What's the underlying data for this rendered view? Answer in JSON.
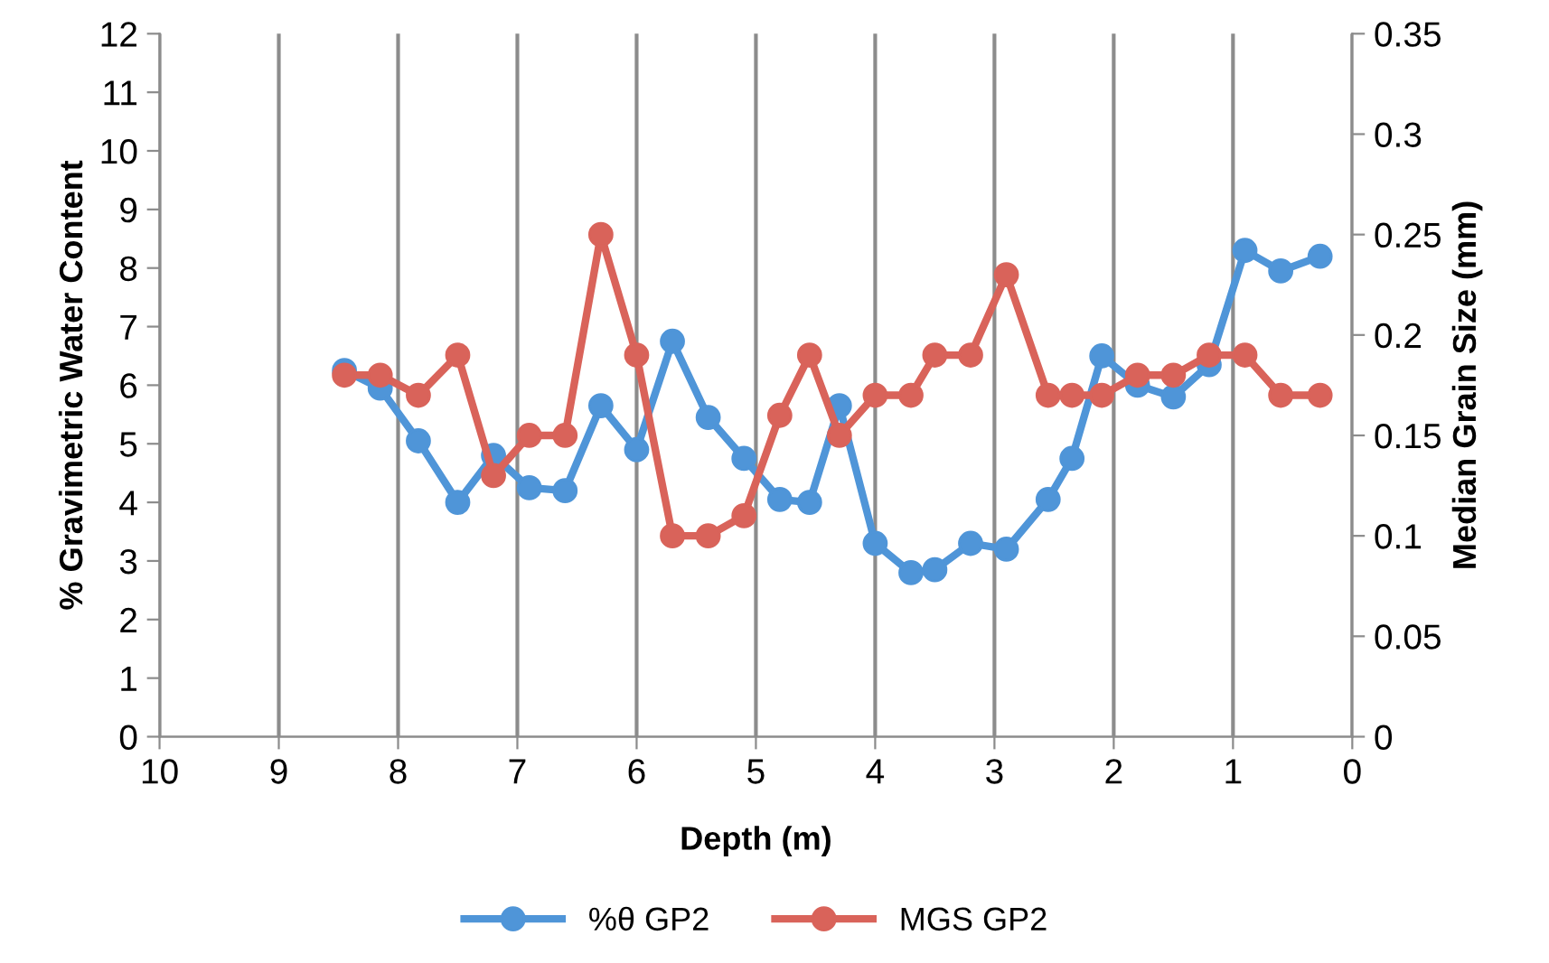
{
  "chart_data": {
    "type": "line",
    "xlabel": "Depth (m)",
    "ylabel": "% Gravimetric Water Content",
    "y2label": "Median Grain Size (mm)",
    "x": [
      8.45,
      8.15,
      7.83,
      7.5,
      7.2,
      6.9,
      6.6,
      6.3,
      6.0,
      5.7,
      5.4,
      5.1,
      4.8,
      4.55,
      4.3,
      4.0,
      3.7,
      3.5,
      3.2,
      2.9,
      2.55,
      2.35,
      2.1,
      1.8,
      1.5,
      1.2,
      0.9,
      0.6,
      0.27
    ],
    "series": [
      {
        "name": "%θ GP2",
        "color": "#4f95d8",
        "values": [
          6.25,
          5.95,
          5.05,
          4.0,
          4.8,
          4.25,
          4.2,
          5.65,
          4.9,
          6.75,
          5.45,
          4.75,
          4.05,
          4.0,
          5.65,
          3.3,
          2.8,
          2.85,
          3.3,
          3.2,
          4.05,
          4.75,
          6.5,
          6.0,
          5.8,
          6.35,
          8.3,
          7.95,
          8.2
        ]
      },
      {
        "name": "MGS GP2",
        "color": "#d9635a",
        "axis": "y2",
        "values": [
          0.18,
          0.18,
          0.17,
          0.19,
          0.13,
          0.15,
          0.15,
          0.25,
          0.19,
          0.1,
          0.1,
          0.11,
          0.16,
          0.19,
          0.15,
          0.17,
          0.17,
          0.19,
          0.19,
          0.23,
          0.17,
          0.17,
          0.17,
          0.18,
          0.18,
          0.19,
          0.19,
          0.17,
          0.17
        ]
      }
    ],
    "xlim": [
      10,
      0
    ],
    "xticks": [
      10,
      9,
      8,
      7,
      6,
      5,
      4,
      3,
      2,
      1,
      0
    ],
    "ylim": [
      0,
      12
    ],
    "yticks": [
      0,
      1,
      2,
      3,
      4,
      5,
      6,
      7,
      8,
      9,
      10,
      11,
      12
    ],
    "y2lim": [
      0,
      0.35
    ],
    "y2ticks": [
      0,
      0.05,
      0.1,
      0.15,
      0.2,
      0.25,
      0.3,
      0.35
    ],
    "grid": "x",
    "legend": "bottom",
    "marker": "circle",
    "line_style": "solid"
  }
}
